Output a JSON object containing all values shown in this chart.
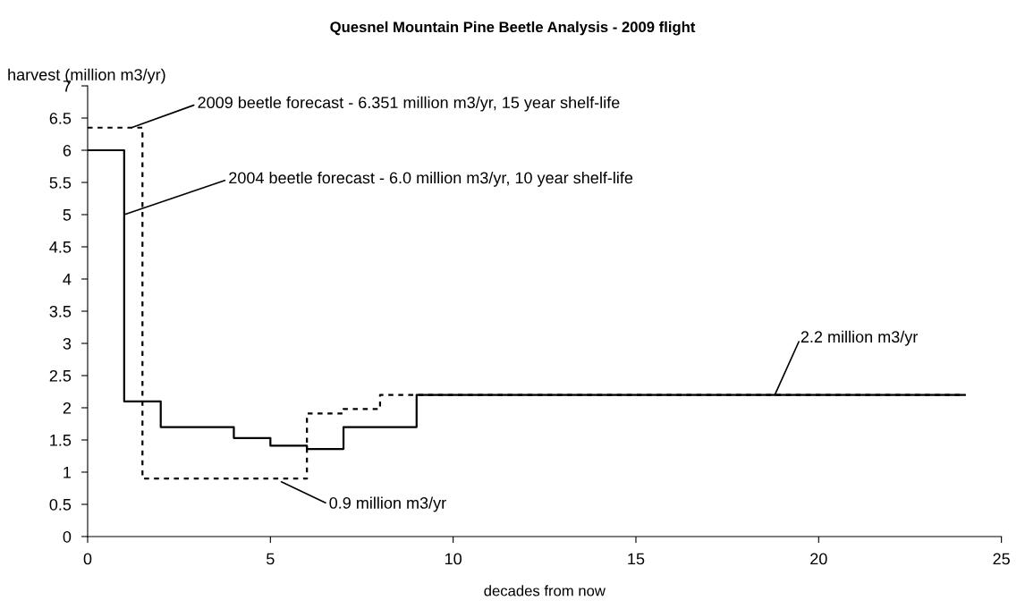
{
  "chart_data": {
    "type": "step",
    "title": "Quesnel Mountain Pine Beetle Analysis - 2009 flight",
    "xlabel": "decades from now",
    "ylabel": "harvest (million m3/yr)",
    "series": [
      {
        "color": "#000000",
        "line_style": "solid",
        "x": [
          0,
          1,
          2,
          4,
          5,
          6,
          7,
          9,
          24
        ],
        "values": [
          6.0,
          2.1,
          1.7,
          1.53,
          1.41,
          1.36,
          1.7,
          2.2,
          2.2
        ]
      },
      {
        "color": "#000000",
        "line_style": "dotted",
        "x": [
          0,
          1.5,
          6,
          7,
          8,
          9,
          24
        ],
        "values": [
          6.351,
          0.9,
          1.91,
          1.98,
          2.2,
          2.2,
          2.2
        ]
      }
    ],
    "annotations": [
      {
        "text": "2009 beetle forecast - 6.351 million m3/yr, 15 year shelf-life",
        "x": 1.2,
        "y": 6.351
      },
      {
        "text": "2004 beetle forecast - 6.0 million m3/yr, 10 year shelf-life",
        "x": 1,
        "y": 5
      },
      {
        "text": "0.9 million m3/yr",
        "x": 5.3,
        "y": 0.85
      },
      {
        "text": "2.2 million m3/yr",
        "x": 18.8,
        "y": 2.2
      }
    ],
    "xlim": [
      0,
      25
    ],
    "xticks": [
      0,
      5,
      10,
      15,
      20,
      25
    ],
    "ylim": [
      0,
      7
    ],
    "yticks": [
      0,
      0.5,
      1,
      1.5,
      2,
      2.5,
      3,
      3.5,
      4,
      4.5,
      5,
      5.5,
      6,
      6.5,
      7
    ],
    "grid": false,
    "legend": false
  }
}
